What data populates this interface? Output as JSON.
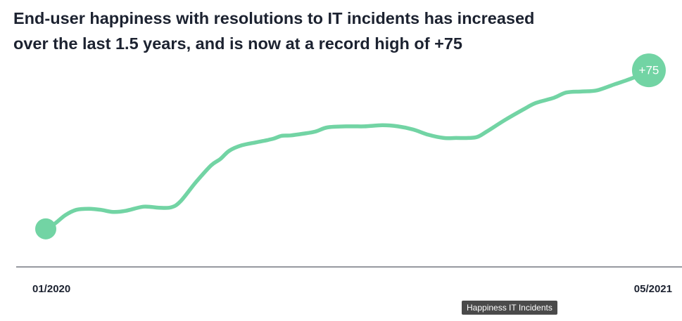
{
  "title_lines": [
    "End-user happiness with resolutions to IT incidents has increased",
    "over the last 1.5 years, and is now at a record high of +75"
  ],
  "tooltip": "Happiness IT Incidents",
  "chart_data": {
    "type": "line",
    "title": "End-user happiness with resolutions to IT incidents has increased over the last 1.5 years, and is now at a record high of +75",
    "xlabel": "",
    "ylabel": "",
    "x_tick_labels": [
      "01/2020",
      "05/2021"
    ],
    "x_range": [
      0,
      1
    ],
    "y_range": [
      -18,
      85
    ],
    "grid": false,
    "legend": "none",
    "series": [
      {
        "color": "#72d4a4",
        "points": [
          [
            0,
            0
          ],
          [
            0.015,
            2.5
          ],
          [
            0.032,
            6.5
          ],
          [
            0.05,
            9
          ],
          [
            0.07,
            9.5
          ],
          [
            0.09,
            9
          ],
          [
            0.11,
            8
          ],
          [
            0.13,
            8.5
          ],
          [
            0.16,
            10.5
          ],
          [
            0.185,
            10
          ],
          [
            0.205,
            10.2
          ],
          [
            0.22,
            13
          ],
          [
            0.245,
            22
          ],
          [
            0.27,
            30
          ],
          [
            0.285,
            33
          ],
          [
            0.3,
            37
          ],
          [
            0.32,
            39.5
          ],
          [
            0.345,
            41
          ],
          [
            0.37,
            42.5
          ],
          [
            0.385,
            44
          ],
          [
            0.4,
            44.2
          ],
          [
            0.42,
            45
          ],
          [
            0.44,
            46
          ],
          [
            0.46,
            48
          ],
          [
            0.49,
            48.5
          ],
          [
            0.52,
            48.5
          ],
          [
            0.55,
            49
          ],
          [
            0.575,
            48.5
          ],
          [
            0.6,
            47
          ],
          [
            0.625,
            44.5
          ],
          [
            0.65,
            43
          ],
          [
            0.67,
            43
          ],
          [
            0.69,
            43
          ],
          [
            0.705,
            43.5
          ],
          [
            0.72,
            46
          ],
          [
            0.75,
            51.5
          ],
          [
            0.78,
            56.5
          ],
          [
            0.8,
            59.5
          ],
          [
            0.83,
            62
          ],
          [
            0.85,
            64.5
          ],
          [
            0.875,
            65
          ],
          [
            0.9,
            65.5
          ],
          [
            0.93,
            68.5
          ],
          [
            0.96,
            71.5
          ],
          [
            0.985,
            75
          ]
        ],
        "start_marker": true,
        "end_marker_label": "+75"
      }
    ]
  }
}
